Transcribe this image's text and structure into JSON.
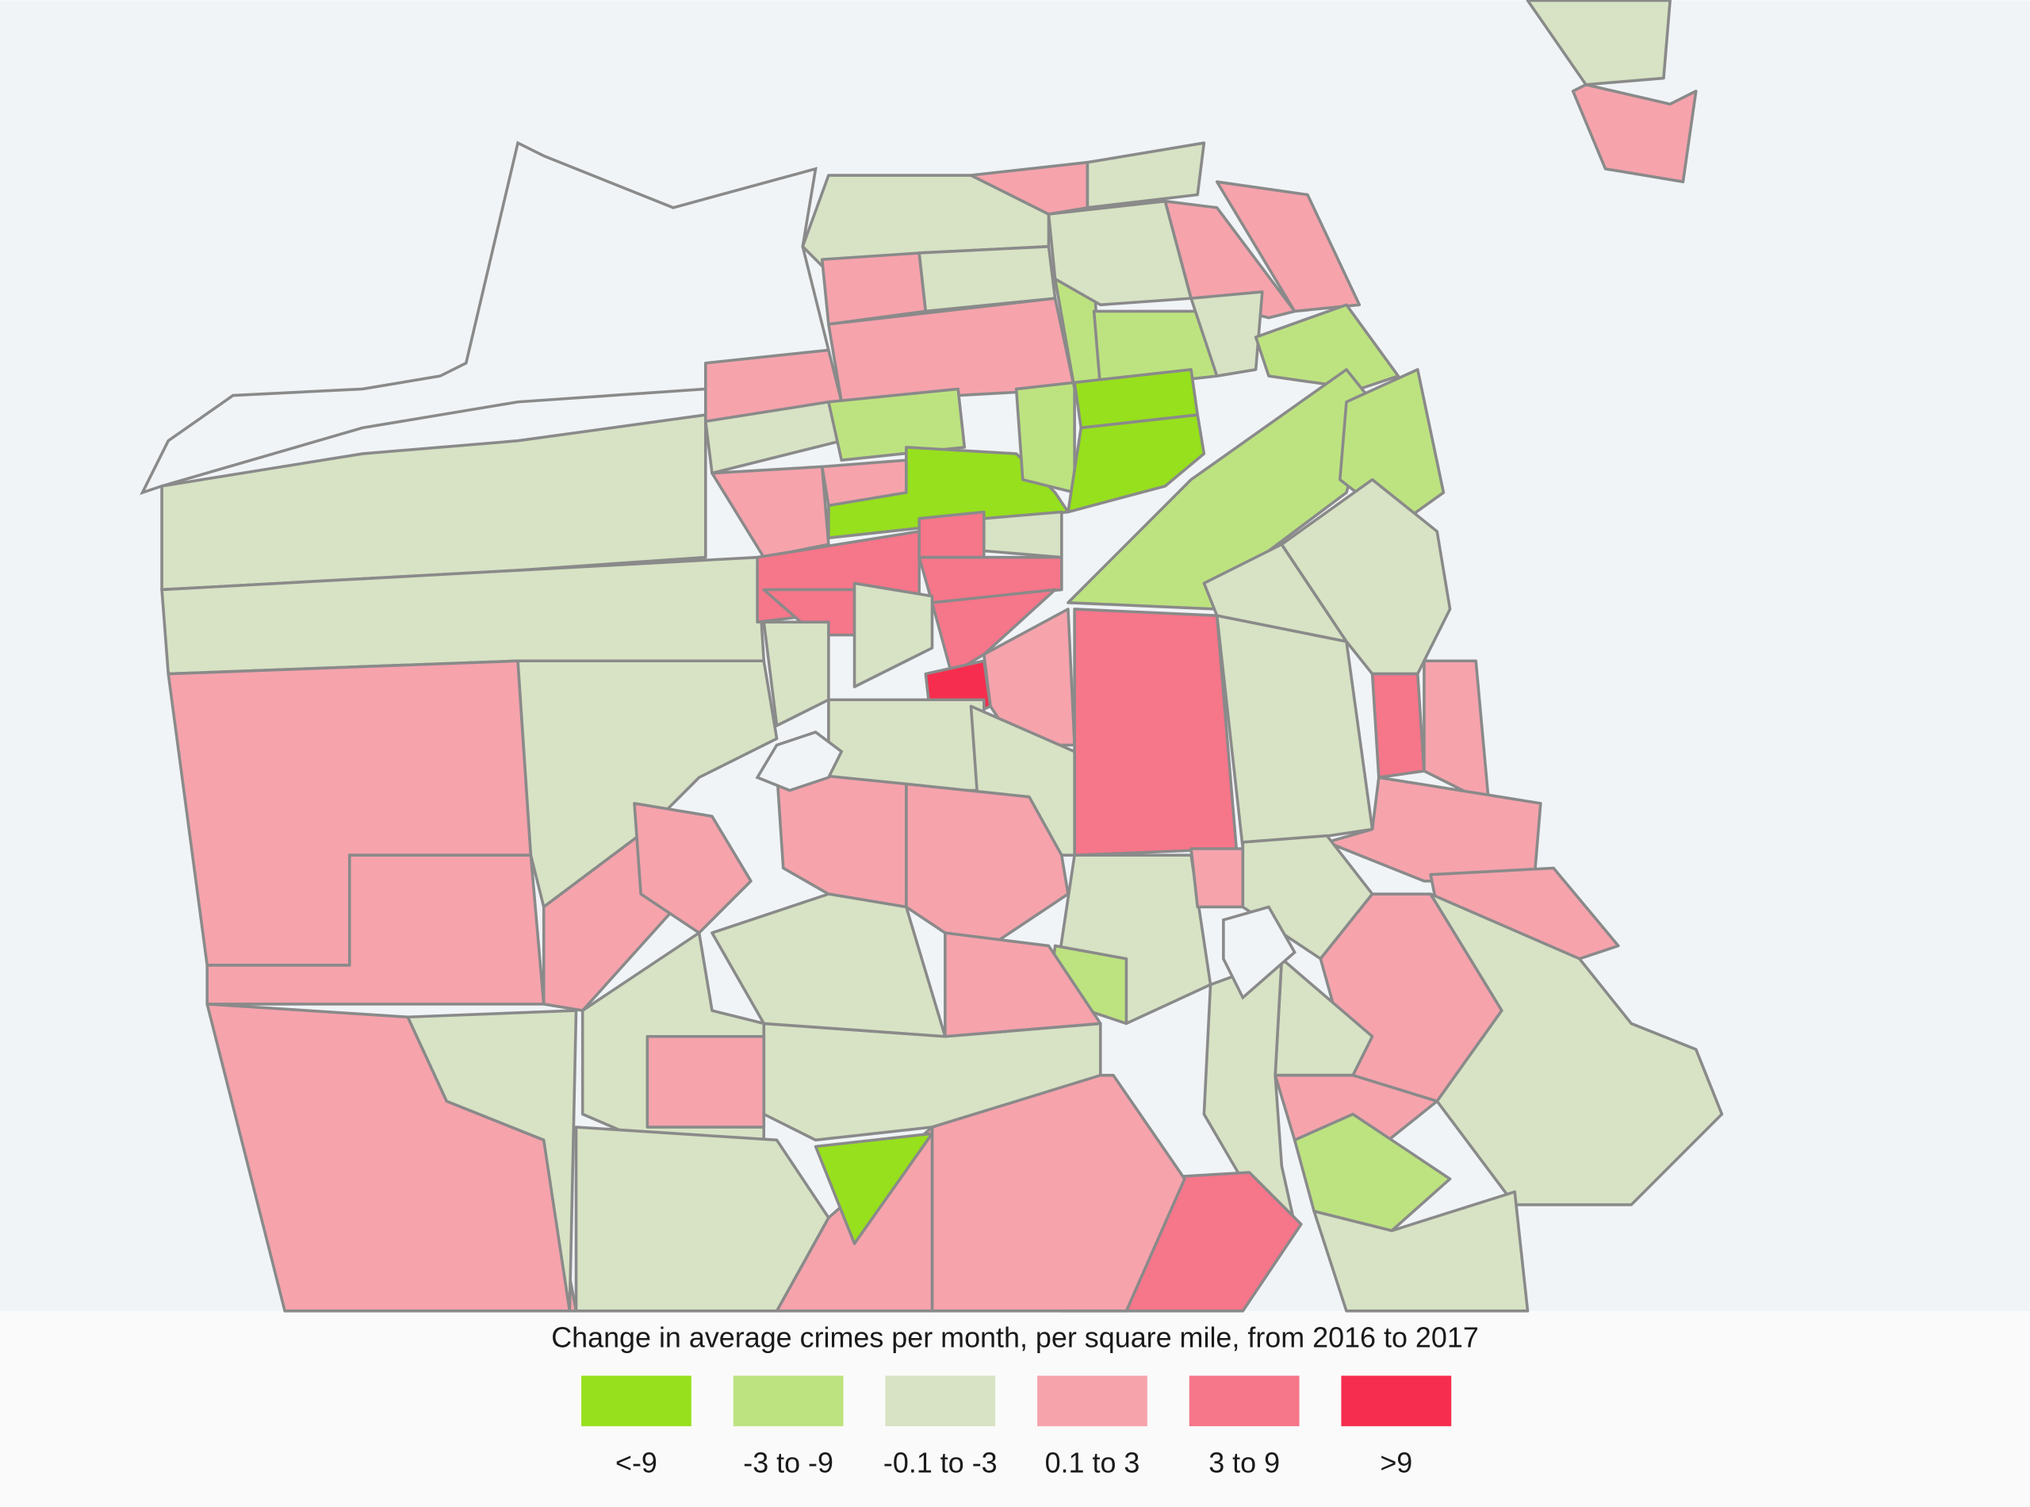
{
  "legend": {
    "title": "Change in average crimes per month, per square mile, from 2016 to 2017",
    "items": [
      {
        "label": "<-9",
        "color": "#97e01d"
      },
      {
        "label": "-3 to -9",
        "color": "#bde380"
      },
      {
        "label": "-0.1 to -3",
        "color": "#d7e3c4"
      },
      {
        "label": "0.1 to 3",
        "color": "#f6a3ac"
      },
      {
        "label": "3 to 9",
        "color": "#f6768a"
      },
      {
        "label": ">9",
        "color": "#f62d4e"
      }
    ]
  }
}
